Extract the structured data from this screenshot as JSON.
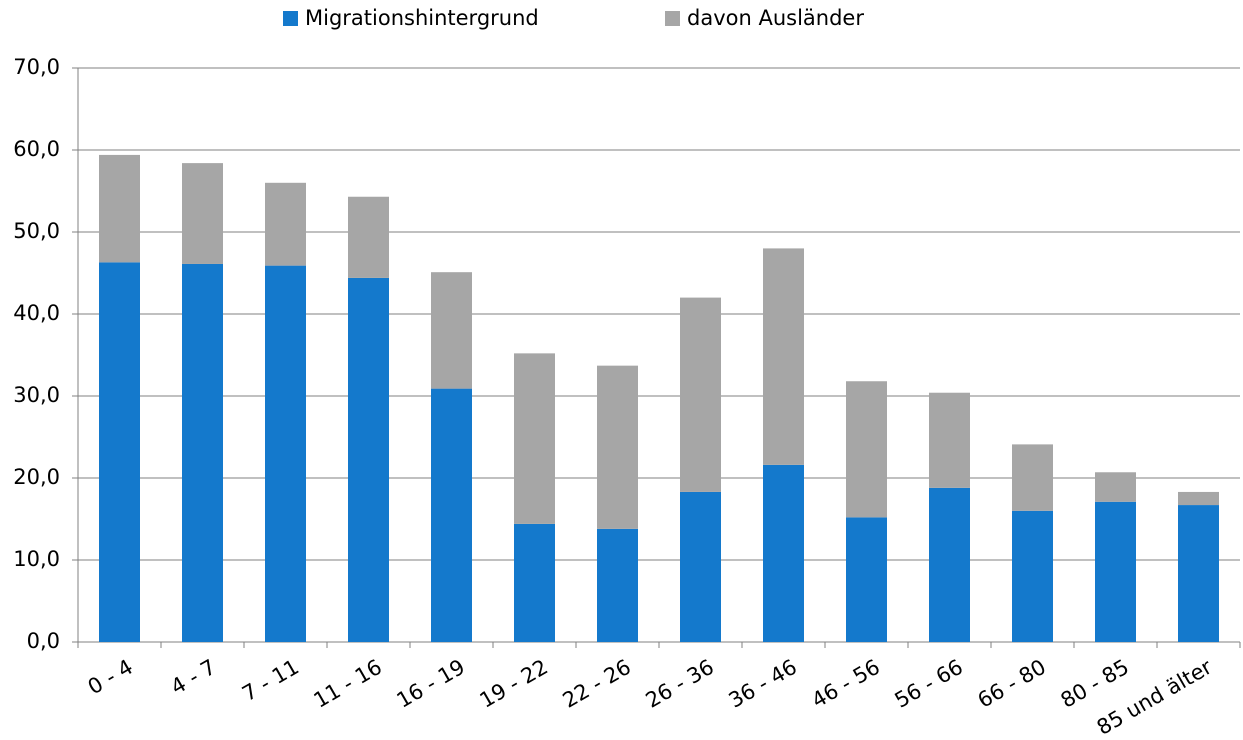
{
  "chart_data": {
    "type": "stacked_bar",
    "categories": [
      "0 - 4",
      "4 - 7",
      "7 - 11",
      "11 - 16",
      "16 - 19",
      "19 - 22",
      "22 - 26",
      "26 - 36",
      "36 - 46",
      "46 - 56",
      "56 - 66",
      "66 - 80",
      "80 - 85",
      "85 und älter"
    ],
    "series": [
      {
        "name": "Migrationshintergrund",
        "color": "#1479cc",
        "values": [
          46.3,
          46.1,
          45.9,
          44.4,
          30.9,
          14.4,
          13.8,
          18.3,
          21.6,
          15.2,
          18.8,
          16.0,
          17.1,
          16.7
        ]
      },
      {
        "name": "davon Ausländer",
        "color": "#a6a6a6",
        "values": [
          13.1,
          12.3,
          10.1,
          9.9,
          14.2,
          20.8,
          19.9,
          23.7,
          26.4,
          16.6,
          11.6,
          8.1,
          3.6,
          1.6
        ]
      }
    ],
    "ylim": [
      0,
      70
    ],
    "yticks": [
      {
        "value": 0,
        "label": "0,0"
      },
      {
        "value": 10,
        "label": "10,0"
      },
      {
        "value": 20,
        "label": "20,0"
      },
      {
        "value": 30,
        "label": "30,0"
      },
      {
        "value": 40,
        "label": "40,0"
      },
      {
        "value": 50,
        "label": "50,0"
      },
      {
        "value": 60,
        "label": "60,0"
      },
      {
        "value": 70,
        "label": "70,0"
      }
    ],
    "grid": true,
    "legend": "top"
  }
}
